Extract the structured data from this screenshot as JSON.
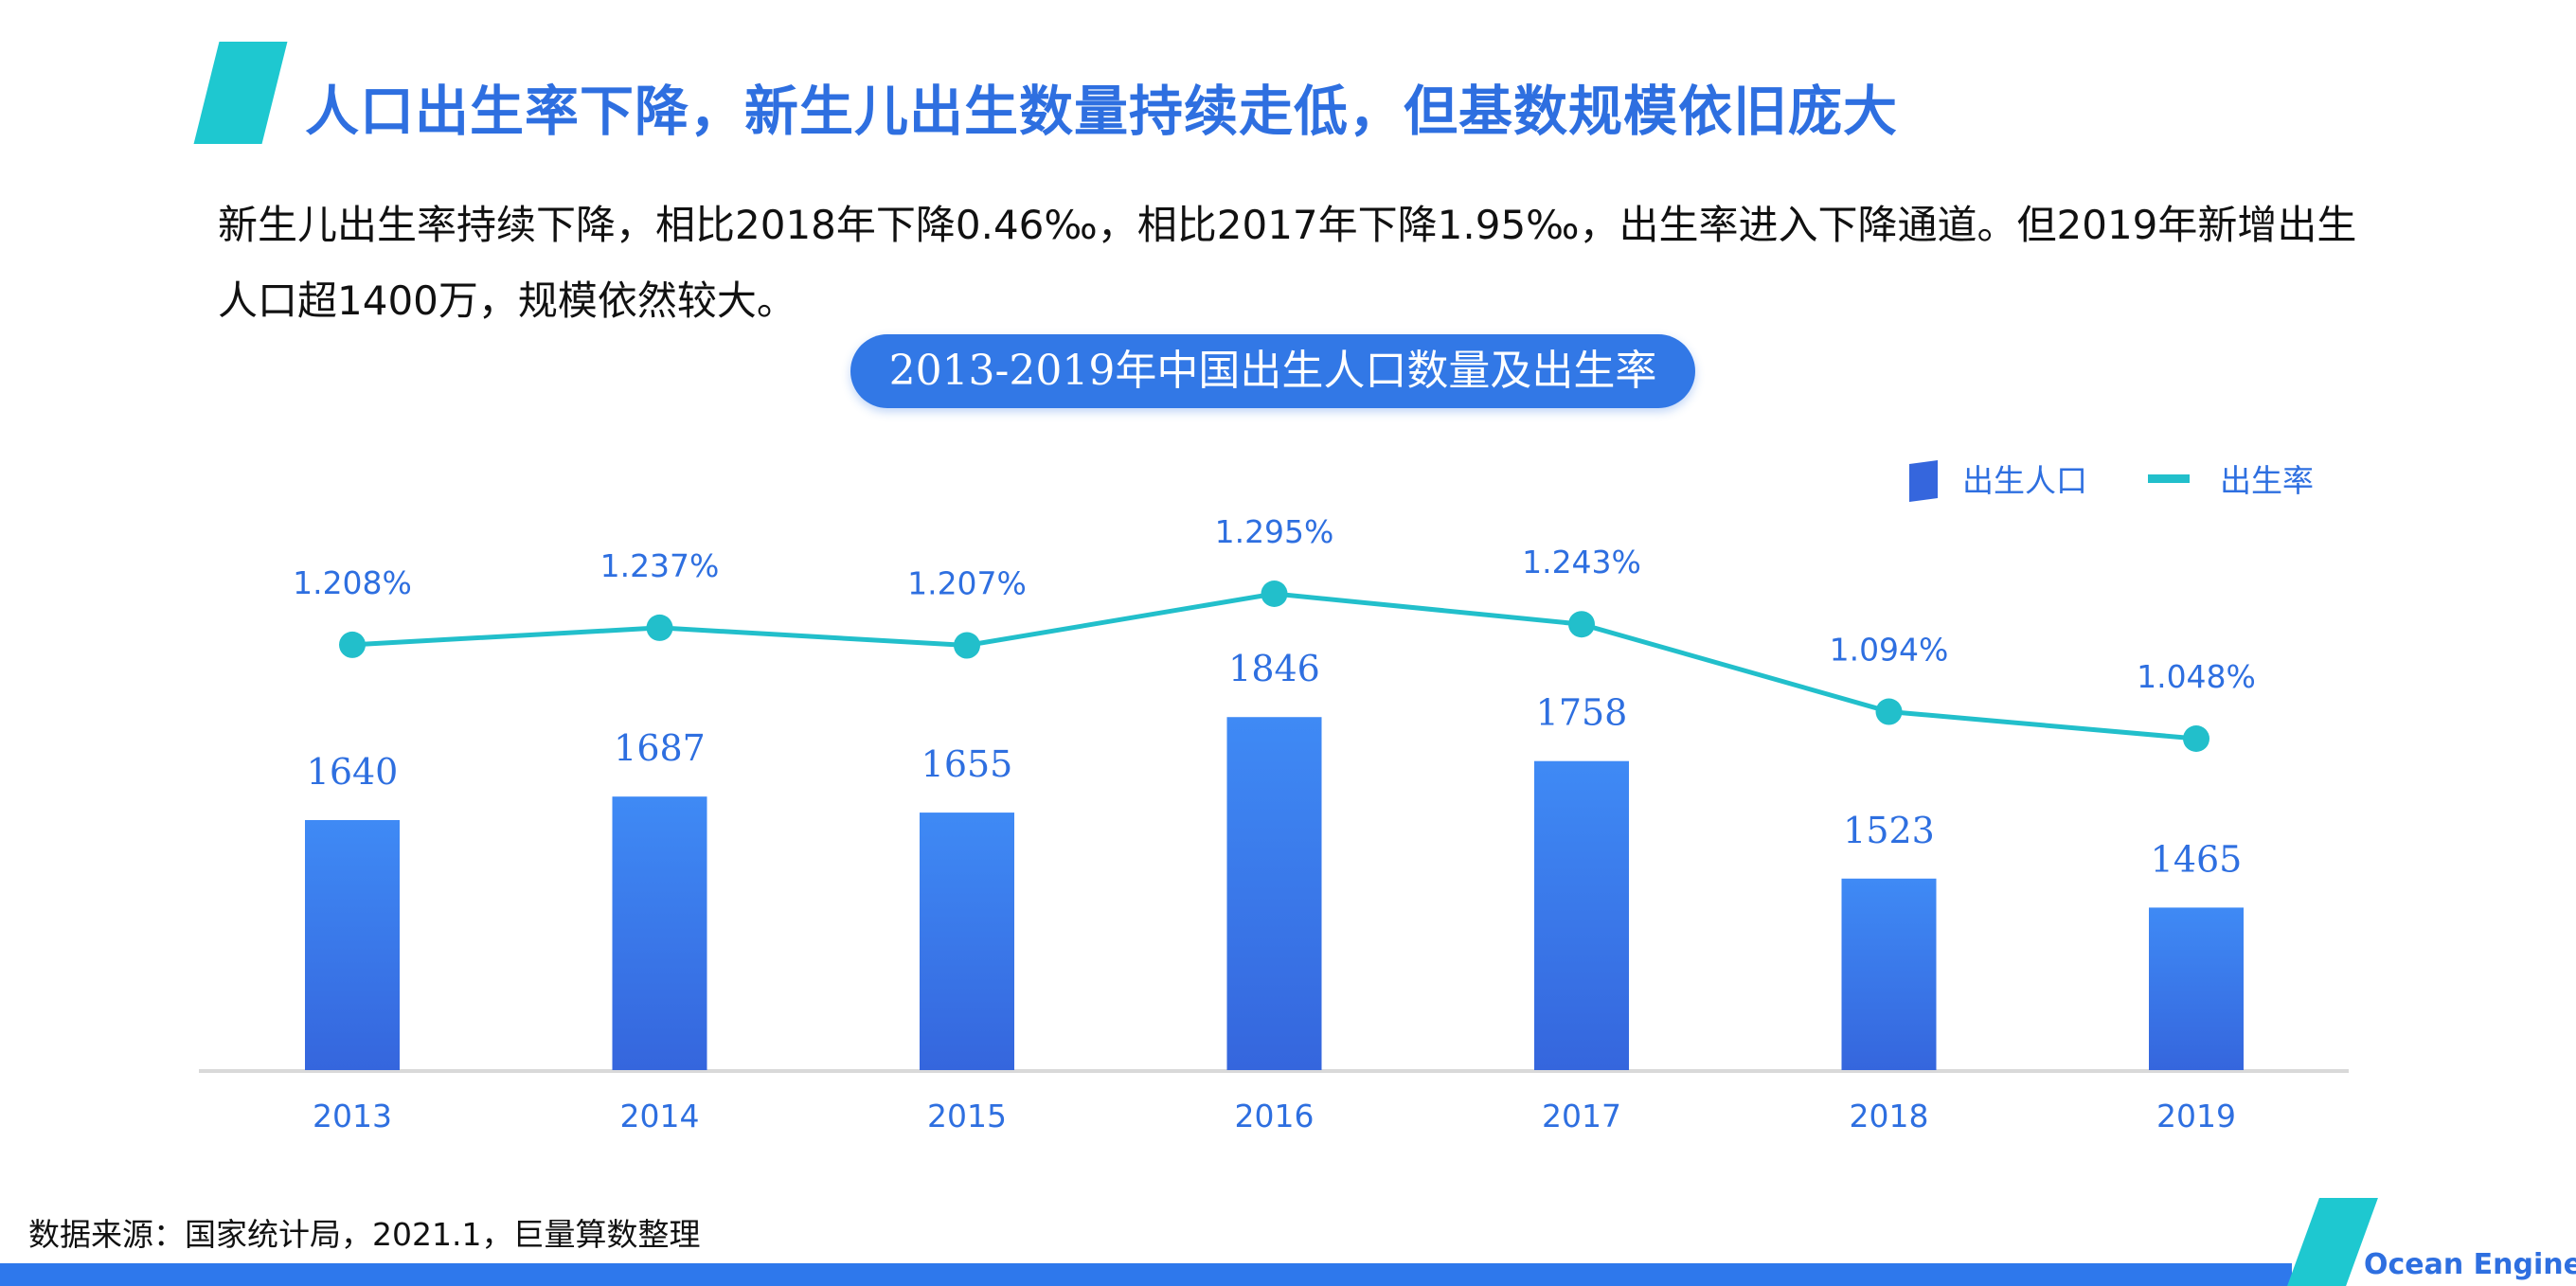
{
  "page": {
    "title": "人口出生率下降，新生儿出生数量持续走低，但基数规模依旧庞大",
    "summary": "新生儿出生率持续下降，相比2018年下降0.46‰，相比2017年下降1.95‰，出生率进入下降通道。但2019年新增出生人口超1400万，规模依然较大。",
    "source": "数据来源：国家统计局，2021.1，巨量算数整理",
    "logo": "Ocean Engine"
  },
  "colors": {
    "bar_top": "#3f8af5",
    "bar_bottom": "#3566dd",
    "line": "#22bfcb",
    "label_blue": "#2e6fe0",
    "title_blue": "#2e6fe0",
    "accent_cyan": "#1ec8d0",
    "axis": "#d9d9d9"
  },
  "chart_data": {
    "type": "bar+line",
    "title": "2013-2019年中国出生人口数量及出生率",
    "categories": [
      "2013",
      "2014",
      "2015",
      "2016",
      "2017",
      "2018",
      "2019"
    ],
    "series": [
      {
        "name": "出生人口",
        "type": "bar",
        "values": [
          1640,
          1687,
          1655,
          1846,
          1758,
          1523,
          1465
        ],
        "labels": [
          "1640",
          "1687",
          "1655",
          "1846",
          "1758",
          "1523",
          "1465"
        ]
      },
      {
        "name": "出生率",
        "type": "line",
        "values": [
          1.208,
          1.237,
          1.207,
          1.295,
          1.243,
          1.094,
          1.048
        ],
        "labels": [
          "1.208%",
          "1.237%",
          "1.207%",
          "1.295%",
          "1.243%",
          "1.094%",
          "1.048%"
        ]
      }
    ],
    "bar_range": [
      0,
      2000
    ],
    "line_range": [
      0.92,
      1.4
    ],
    "legend": "top-right",
    "grid": false
  }
}
